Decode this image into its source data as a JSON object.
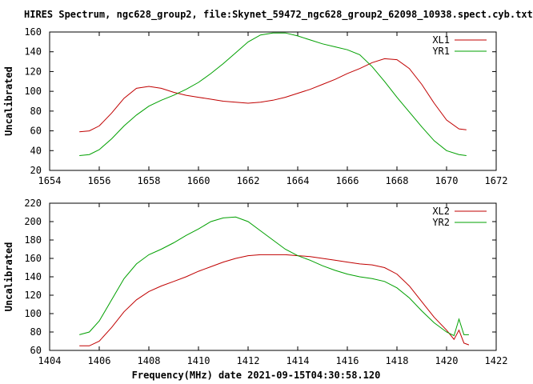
{
  "title": "HIRES Spectrum, ngc628_group2, file:Skynet_59472_ngc628_group2_62098_10938.spect.cyb.txt",
  "xlabel": "Frequency(MHz) date 2021-09-15T04:30:58.120",
  "colors": {
    "red": "#c00000",
    "green": "#00a000",
    "axis": "#000000"
  },
  "chart_data": [
    {
      "type": "line",
      "ylabel": "Uncalibrated",
      "xlim": [
        1654,
        1672
      ],
      "ylim": [
        20,
        160
      ],
      "xticks": [
        1654,
        1656,
        1658,
        1660,
        1662,
        1664,
        1666,
        1668,
        1670,
        1672
      ],
      "yticks": [
        20,
        40,
        60,
        80,
        100,
        120,
        140,
        160
      ],
      "legend": "top-right",
      "series": [
        {
          "name": "XL1",
          "color": "#c00000",
          "x": [
            1655.2,
            1655.6,
            1656.0,
            1656.5,
            1657.0,
            1657.5,
            1658.0,
            1658.5,
            1659.0,
            1659.5,
            1660.0,
            1660.5,
            1661.0,
            1661.5,
            1662.0,
            1662.5,
            1663.0,
            1663.5,
            1664.0,
            1664.5,
            1665.0,
            1665.5,
            1666.0,
            1666.5,
            1667.0,
            1667.5,
            1668.0,
            1668.5,
            1669.0,
            1669.5,
            1670.0,
            1670.5,
            1670.8
          ],
          "y": [
            59,
            60,
            65,
            78,
            93,
            103,
            105,
            103,
            99,
            96,
            94,
            92,
            90,
            89,
            88,
            89,
            91,
            94,
            98,
            102,
            107,
            112,
            118,
            123,
            129,
            133,
            132,
            123,
            107,
            88,
            71,
            62,
            61
          ]
        },
        {
          "name": "YR1",
          "color": "#00a000",
          "x": [
            1655.2,
            1655.6,
            1656.0,
            1656.5,
            1657.0,
            1657.5,
            1658.0,
            1658.5,
            1659.0,
            1659.5,
            1660.0,
            1660.5,
            1661.0,
            1661.5,
            1662.0,
            1662.5,
            1663.0,
            1663.5,
            1664.0,
            1664.5,
            1665.0,
            1665.5,
            1666.0,
            1666.5,
            1667.0,
            1667.5,
            1668.0,
            1668.5,
            1669.0,
            1669.5,
            1670.0,
            1670.5,
            1670.8
          ],
          "y": [
            35,
            36,
            41,
            52,
            65,
            76,
            85,
            91,
            96,
            102,
            109,
            118,
            128,
            139,
            150,
            157,
            159,
            159,
            156,
            152,
            148,
            145,
            142,
            137,
            125,
            110,
            94,
            79,
            64,
            50,
            40,
            36,
            35
          ]
        }
      ]
    },
    {
      "type": "line",
      "ylabel": "Uncalibrated",
      "xlim": [
        1404,
        1422
      ],
      "ylim": [
        60,
        220
      ],
      "xticks": [
        1404,
        1406,
        1408,
        1410,
        1412,
        1414,
        1416,
        1418,
        1420,
        1422
      ],
      "yticks": [
        60,
        80,
        100,
        120,
        140,
        160,
        180,
        200,
        220
      ],
      "legend": "top-right",
      "series": [
        {
          "name": "XL2",
          "color": "#c00000",
          "x": [
            1405.2,
            1405.6,
            1406.0,
            1406.5,
            1407.0,
            1407.5,
            1408.0,
            1408.5,
            1409.0,
            1409.5,
            1410.0,
            1410.5,
            1411.0,
            1411.5,
            1412.0,
            1412.5,
            1413.0,
            1413.5,
            1414.0,
            1414.5,
            1415.0,
            1415.5,
            1416.0,
            1416.5,
            1417.0,
            1417.5,
            1418.0,
            1418.5,
            1419.0,
            1419.5,
            1420.0,
            1420.3,
            1420.5,
            1420.7,
            1420.9
          ],
          "y": [
            65,
            65,
            70,
            85,
            102,
            115,
            124,
            130,
            135,
            140,
            146,
            151,
            156,
            160,
            163,
            164,
            164,
            164,
            163,
            162,
            160,
            158,
            156,
            154,
            153,
            150,
            143,
            130,
            113,
            96,
            82,
            72,
            82,
            68,
            66
          ]
        },
        {
          "name": "YR2",
          "color": "#00a000",
          "x": [
            1405.2,
            1405.6,
            1406.0,
            1406.5,
            1407.0,
            1407.5,
            1408.0,
            1408.5,
            1409.0,
            1409.5,
            1410.0,
            1410.5,
            1411.0,
            1411.5,
            1412.0,
            1412.5,
            1413.0,
            1413.5,
            1414.0,
            1414.5,
            1415.0,
            1415.5,
            1416.0,
            1416.5,
            1417.0,
            1417.5,
            1418.0,
            1418.5,
            1419.0,
            1419.5,
            1420.0,
            1420.3,
            1420.5,
            1420.7,
            1420.9
          ],
          "y": [
            77,
            80,
            92,
            115,
            138,
            154,
            164,
            170,
            177,
            185,
            192,
            200,
            204,
            205,
            200,
            190,
            180,
            170,
            163,
            158,
            152,
            147,
            143,
            140,
            138,
            135,
            128,
            117,
            103,
            90,
            80,
            76,
            94,
            77,
            77
          ]
        }
      ]
    }
  ]
}
